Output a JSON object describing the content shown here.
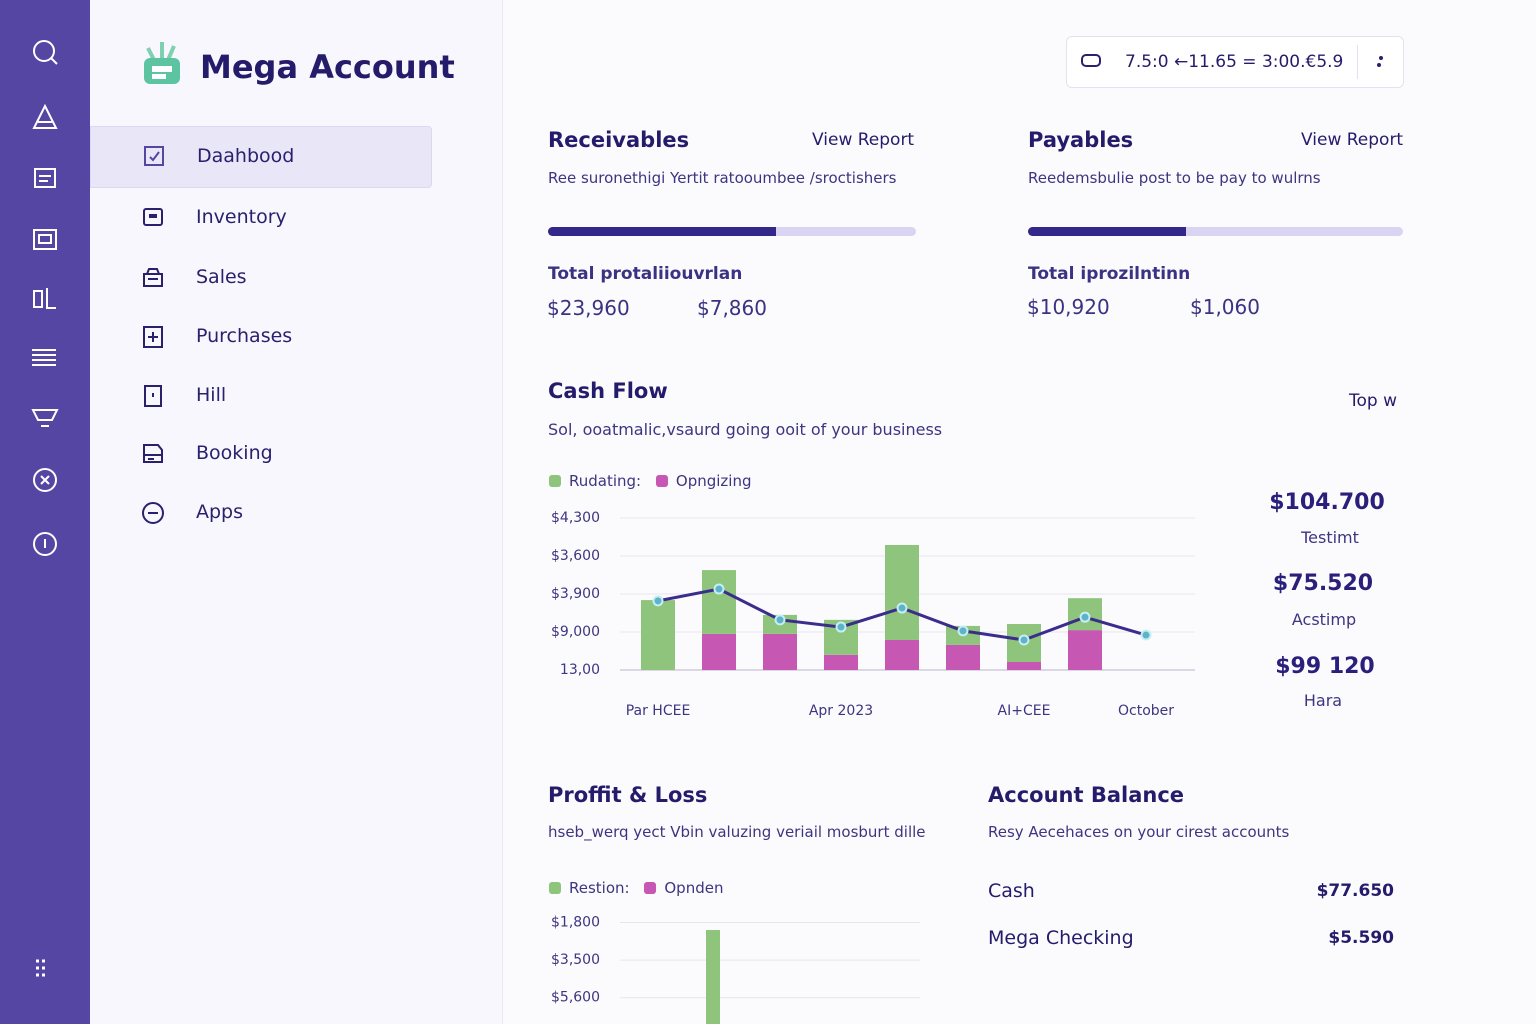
{
  "app": {
    "title": "Mega Account"
  },
  "nav": [
    {
      "label": "Daahbood",
      "active": true
    },
    {
      "label": "Inventory"
    },
    {
      "label": "Sales"
    },
    {
      "label": "Purchases"
    },
    {
      "label": "Hill"
    },
    {
      "label": "Booking"
    },
    {
      "label": "Apps"
    }
  ],
  "search": {
    "text": "7.5:0 ←11.65 = 3:00.€5.9"
  },
  "receivables": {
    "title": "Receivables",
    "link": "View Report",
    "description": "Ree suronethigi Yertit ratooumbee /sroctishers",
    "progress": 62,
    "total_label": "Total protaliiouvrlan",
    "amounts": [
      "$23,960",
      "$7,860"
    ]
  },
  "payables": {
    "title": "Payables",
    "link": "View Report",
    "description": "Reedemsbulie post to be pay to wulrns",
    "progress": 42,
    "total_label": "Total iprozilntinn",
    "amounts": [
      "$10,920",
      "$1,060"
    ]
  },
  "cash_flow": {
    "title": "Cash Flow",
    "description": "Sol, ooatmalic,vsaurd going ooit of your business",
    "filter": "Top w",
    "chart": {
      "type": "bar",
      "stacked": true,
      "categories": [
        "Par HCEE",
        null,
        null,
        "Apr 2023",
        null,
        null,
        "AI+CEE",
        null,
        "October"
      ],
      "series": [
        {
          "name": "Rudating:",
          "color": "#8fc47c",
          "values": [
            1.84,
            1.68,
            0.5,
            0.92,
            2.5,
            0.5,
            1.0,
            0.84,
            null
          ]
        },
        {
          "name": "Opngizing",
          "color": "#c658b3",
          "values": [
            0,
            0.95,
            0.95,
            0.4,
            0.79,
            0.66,
            0.21,
            1.05,
            null
          ]
        }
      ],
      "line": {
        "color": "#3a2d8c",
        "values": [
          1.82,
          2.13,
          1.32,
          1.13,
          1.63,
          1.03,
          0.79,
          1.39,
          0.92
        ]
      },
      "ylim": [
        0,
        4
      ],
      "yticks": [
        {
          "value": 0,
          "label": "13,00"
        },
        {
          "value": 1,
          "label": "$9,000"
        },
        {
          "value": 2,
          "label": "$3,900"
        },
        {
          "value": 3,
          "label": "$3,600"
        },
        {
          "value": 4,
          "label": "$4,300"
        }
      ],
      "grid": true
    },
    "stats": [
      {
        "value": "$104.700",
        "label": "Testimt"
      },
      {
        "value": "$75.520",
        "label": "Acstimp"
      },
      {
        "value": "$99 120",
        "label": "Hara"
      }
    ]
  },
  "profit_loss": {
    "title": "Proffit & Loss",
    "description": "hseb_werq yect Vbin valuzing veriail mosburt dille",
    "chart": {
      "type": "bar",
      "categories": [
        null,
        null,
        null,
        null,
        null,
        null,
        null,
        null
      ],
      "series": [
        {
          "name": "Restion:",
          "color": "#8fc47c",
          "values": [
            null,
            1.8,
            null,
            null,
            null,
            null,
            null,
            null
          ]
        },
        {
          "name": "Opnden",
          "color": "#c658b3",
          "values": [
            null,
            null,
            null,
            null,
            null,
            null,
            null,
            null
          ]
        }
      ],
      "ylim": [
        -0.7,
        2.2
      ],
      "yticks": [
        {
          "value": 0,
          "label": "$5,600"
        },
        {
          "value": 1,
          "label": "$3,500"
        },
        {
          "value": 2,
          "label": "$1,800"
        }
      ],
      "grid": true
    }
  },
  "account_balance": {
    "title": "Account Balance",
    "description": "Resy Aecehaces on your cirest accounts",
    "rows": [
      {
        "name": "Cash",
        "amount": "$77.650"
      },
      {
        "name": "Mega Checking",
        "amount": "$5.590"
      }
    ]
  }
}
